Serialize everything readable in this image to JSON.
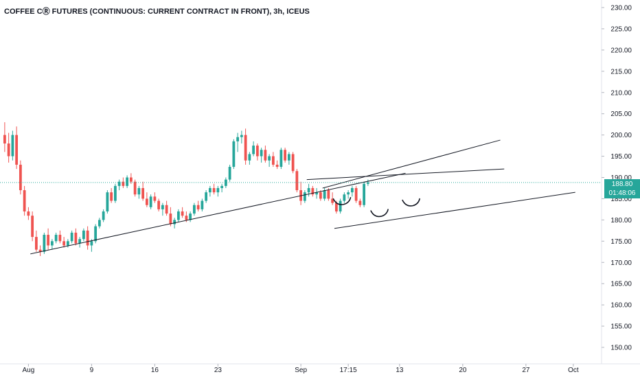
{
  "chart_data": {
    "type": "candlestick",
    "title": "COFFEE CⓇ FUTURES (CONTINUOUS: CURRENT CONTRACT IN FRONT), 3h, ICEUS",
    "ylim": [
      147,
      232
    ],
    "y_ticks": [
      "150.00",
      "155.00",
      "160.00",
      "165.00",
      "170.00",
      "175.00",
      "180.00",
      "185.00",
      "190.00",
      "195.00",
      "200.00",
      "205.00",
      "210.00",
      "215.00",
      "220.00",
      "225.00",
      "230.00"
    ],
    "x_ticks": [
      {
        "label": "Aug",
        "bar": 6
      },
      {
        "label": "9",
        "bar": 22
      },
      {
        "label": "16",
        "bar": 38
      },
      {
        "label": "23",
        "bar": 54
      },
      {
        "label": "Sep",
        "bar": 75
      },
      {
        "label": "17:15",
        "bar": 87
      },
      {
        "label": "13",
        "bar": 100
      },
      {
        "label": "20",
        "bar": 116
      },
      {
        "label": "27",
        "bar": 132
      },
      {
        "label": "Oct",
        "bar": 144
      }
    ],
    "last_price": "188.80",
    "countdown": "01:48:06",
    "colors": {
      "up": "#26a69a",
      "down": "#ef5350",
      "accent": "#26a69a",
      "line": "#131722"
    },
    "candles": [
      [
        200.0,
        203.0,
        196.0,
        198.0
      ],
      [
        198.0,
        200.5,
        193.5,
        195.0
      ],
      [
        195.0,
        201.0,
        194.0,
        200.0
      ],
      [
        200.0,
        202.0,
        192.0,
        193.0
      ],
      [
        193.0,
        194.0,
        186.0,
        187.0
      ],
      [
        187.0,
        188.0,
        181.0,
        182.0
      ],
      [
        182.0,
        183.0,
        180.0,
        181.0
      ],
      [
        181.0,
        182.0,
        175.0,
        176.0
      ],
      [
        176.0,
        177.5,
        172.5,
        173.0
      ],
      [
        173.0,
        174.0,
        171.5,
        172.5
      ],
      [
        172.5,
        177.0,
        172.0,
        176.5
      ],
      [
        176.5,
        178.0,
        173.0,
        174.0
      ],
      [
        174.0,
        175.5,
        173.0,
        175.0
      ],
      [
        175.0,
        177.0,
        174.5,
        176.5
      ],
      [
        176.5,
        177.5,
        174.5,
        175.0
      ],
      [
        175.0,
        176.0,
        173.5,
        174.0
      ],
      [
        174.0,
        175.5,
        173.5,
        175.0
      ],
      [
        175.0,
        177.5,
        174.5,
        177.0
      ],
      [
        177.0,
        178.0,
        174.0,
        174.5
      ],
      [
        174.5,
        176.0,
        173.5,
        175.5
      ],
      [
        175.5,
        178.0,
        175.0,
        177.5
      ],
      [
        177.5,
        178.5,
        173.0,
        174.0
      ],
      [
        174.0,
        175.5,
        172.5,
        175.0
      ],
      [
        175.0,
        179.0,
        174.5,
        178.5
      ],
      [
        178.5,
        180.5,
        178.0,
        180.0
      ],
      [
        180.0,
        182.5,
        179.5,
        182.0
      ],
      [
        182.0,
        187.0,
        181.5,
        186.5
      ],
      [
        186.5,
        187.5,
        184.0,
        184.5
      ],
      [
        184.5,
        188.5,
        184.0,
        188.0
      ],
      [
        188.0,
        189.5,
        187.0,
        189.0
      ],
      [
        189.0,
        190.0,
        187.5,
        188.0
      ],
      [
        188.0,
        190.5,
        187.5,
        190.0
      ],
      [
        190.0,
        191.0,
        188.5,
        189.0
      ],
      [
        189.0,
        189.5,
        185.5,
        186.0
      ],
      [
        186.0,
        188.0,
        185.0,
        187.5
      ],
      [
        187.5,
        189.0,
        184.5,
        185.0
      ],
      [
        185.0,
        186.5,
        183.0,
        183.5
      ],
      [
        183.0,
        186.0,
        182.5,
        185.5
      ],
      [
        185.5,
        186.5,
        184.0,
        184.5
      ],
      [
        184.5,
        185.0,
        182.0,
        182.5
      ],
      [
        182.5,
        184.0,
        181.0,
        183.5
      ],
      [
        183.5,
        184.5,
        181.0,
        181.5
      ],
      [
        181.5,
        183.0,
        178.5,
        179.0
      ],
      [
        179.0,
        180.5,
        178.0,
        180.0
      ],
      [
        180.0,
        182.5,
        179.5,
        182.0
      ],
      [
        182.0,
        183.0,
        180.5,
        181.0
      ],
      [
        181.0,
        182.0,
        179.5,
        180.0
      ],
      [
        180.0,
        182.0,
        179.5,
        181.5
      ],
      [
        181.5,
        184.0,
        181.0,
        183.5
      ],
      [
        183.5,
        184.5,
        182.0,
        182.5
      ],
      [
        182.5,
        185.0,
        182.0,
        184.5
      ],
      [
        184.5,
        187.0,
        184.0,
        186.5
      ],
      [
        186.5,
        188.0,
        185.5,
        187.5
      ],
      [
        187.5,
        188.5,
        186.0,
        186.5
      ],
      [
        186.5,
        188.0,
        185.5,
        187.5
      ],
      [
        187.5,
        188.5,
        186.5,
        188.0
      ],
      [
        188.0,
        190.0,
        187.5,
        189.5
      ],
      [
        189.5,
        193.0,
        189.0,
        192.5
      ],
      [
        192.5,
        199.0,
        192.0,
        198.5
      ],
      [
        198.5,
        200.5,
        196.0,
        199.5
      ],
      [
        199.5,
        201.0,
        198.0,
        200.0
      ],
      [
        200.0,
        201.5,
        193.0,
        194.0
      ],
      [
        194.0,
        196.0,
        193.0,
        195.5
      ],
      [
        195.5,
        198.5,
        195.0,
        197.5
      ],
      [
        197.5,
        198.0,
        194.0,
        195.0
      ],
      [
        195.0,
        197.0,
        193.5,
        196.5
      ],
      [
        196.5,
        197.5,
        193.5,
        194.0
      ],
      [
        194.0,
        195.5,
        192.5,
        195.0
      ],
      [
        195.0,
        196.0,
        192.5,
        193.0
      ],
      [
        193.0,
        194.0,
        192.0,
        192.5
      ],
      [
        192.5,
        197.0,
        192.0,
        196.5
      ],
      [
        196.5,
        197.0,
        193.5,
        194.0
      ],
      [
        194.0,
        196.0,
        193.0,
        195.5
      ],
      [
        195.5,
        196.0,
        191.0,
        191.5
      ],
      [
        191.5,
        192.0,
        186.5,
        187.0
      ],
      [
        187.0,
        189.0,
        183.5,
        184.5
      ],
      [
        184.5,
        187.0,
        184.0,
        186.5
      ],
      [
        186.5,
        188.5,
        185.5,
        187.5
      ],
      [
        187.5,
        188.0,
        185.5,
        186.0
      ],
      [
        186.0,
        187.5,
        185.0,
        186.5
      ],
      [
        186.5,
        187.0,
        184.5,
        185.0
      ],
      [
        185.0,
        187.5,
        184.5,
        187.0
      ],
      [
        187.0,
        187.5,
        184.5,
        185.0
      ],
      [
        185.0,
        186.5,
        183.5,
        184.0
      ],
      [
        184.0,
        184.5,
        181.5,
        182.0
      ],
      [
        182.0,
        185.0,
        181.5,
        184.5
      ],
      [
        184.5,
        186.5,
        184.0,
        186.0
      ],
      [
        186.0,
        187.0,
        185.0,
        186.5
      ],
      [
        186.5,
        188.0,
        185.5,
        187.5
      ],
      [
        187.5,
        188.0,
        184.0,
        184.5
      ],
      [
        184.5,
        185.0,
        183.0,
        183.5
      ],
      [
        183.5,
        189.0,
        183.0,
        188.5
      ],
      [
        188.5,
        189.5,
        188.0,
        188.8
      ]
    ],
    "trend_lines": [
      {
        "from": [
          7,
          172.0
        ],
        "to": [
          102,
          191.0
        ]
      },
      {
        "from": [
          81,
          187.5
        ],
        "to": [
          126,
          198.8
        ]
      },
      {
        "from": [
          77,
          189.5
        ],
        "to": [
          127,
          192.0
        ]
      },
      {
        "from": [
          84,
          178.0
        ],
        "to": [
          145,
          186.5
        ]
      }
    ],
    "arcs": [
      {
        "center_bar": 86,
        "price": 184.3
      },
      {
        "center_bar": 95.5,
        "price": 181.5
      },
      {
        "center_bar": 103.5,
        "price": 184.0
      }
    ]
  }
}
